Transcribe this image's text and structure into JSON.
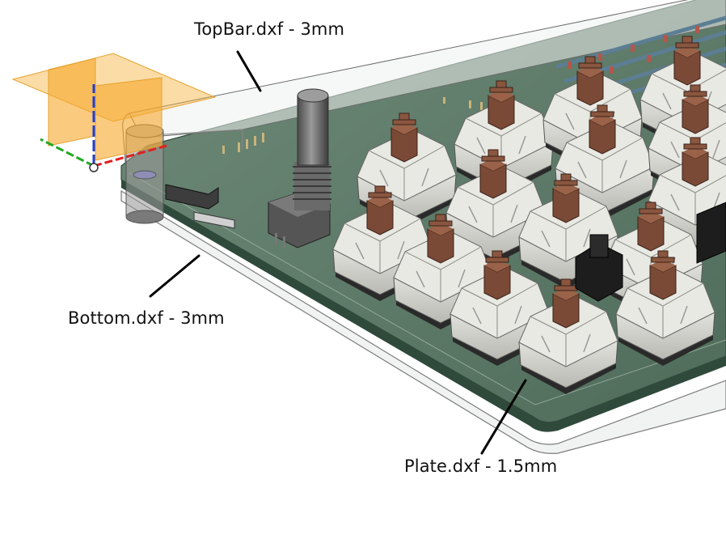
{
  "callouts": {
    "topbar": "TopBar.dxf - 3mm",
    "bottom": "Bottom.dxf - 3mm",
    "plate": "Plate.dxf - 1.5mm"
  },
  "colors": {
    "background": "#ffffff",
    "pcb": "#5d7a68",
    "pcb_edge": "#2f4a3b",
    "acrylic": "#eef1f1",
    "switch_housing": "#d7d7d2",
    "switch_stem_brown": "#7a4a36",
    "switch_stem_black": "#1d1d1d",
    "origin_plane": "#f7b23a",
    "axis_x": "#e02020",
    "axis_y": "#22aa22",
    "axis_z": "#1f3fd6"
  },
  "icons": {
    "origin": "origin-gizmo-icon",
    "encoder": "rotary-encoder-icon"
  }
}
